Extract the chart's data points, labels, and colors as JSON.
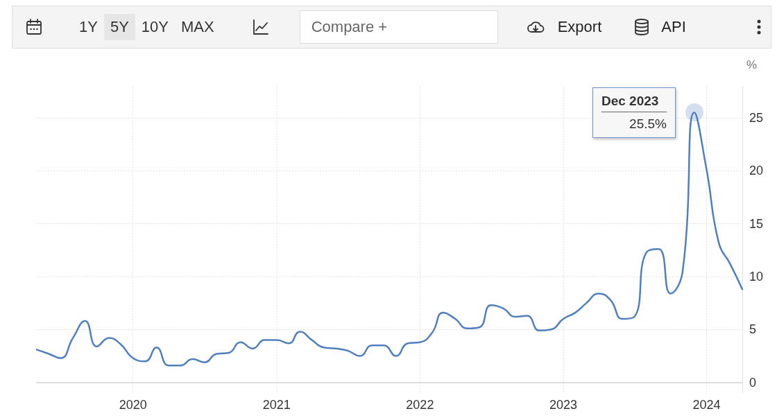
{
  "chart_data": {
    "type": "line",
    "ylabel": "%",
    "x": [
      "2019-05",
      "2019-06",
      "2019-07",
      "2019-08",
      "2019-09",
      "2019-10",
      "2019-11",
      "2019-12",
      "2020-01",
      "2020-02",
      "2020-03",
      "2020-04",
      "2020-05",
      "2020-06",
      "2020-07",
      "2020-08",
      "2020-09",
      "2020-10",
      "2020-11",
      "2020-12",
      "2021-01",
      "2021-02",
      "2021-03",
      "2021-04",
      "2021-05",
      "2021-06",
      "2021-07",
      "2021-08",
      "2021-09",
      "2021-10",
      "2021-11",
      "2021-12",
      "2022-01",
      "2022-02",
      "2022-03",
      "2022-04",
      "2022-05",
      "2022-06",
      "2022-07",
      "2022-08",
      "2022-09",
      "2022-10",
      "2022-11",
      "2022-12",
      "2023-01",
      "2023-02",
      "2023-03",
      "2023-04",
      "2023-05",
      "2023-06",
      "2023-07",
      "2023-08",
      "2023-09",
      "2023-10",
      "2023-11",
      "2023-12",
      "2024-01",
      "2024-02",
      "2024-03",
      "2024-04"
    ],
    "series": [
      {
        "color": "#4f7fbf",
        "values": [
          3.1,
          2.7,
          2.3,
          4.2,
          5.8,
          3.4,
          4.2,
          3.6,
          2.3,
          2.0,
          3.3,
          1.6,
          1.6,
          2.2,
          1.9,
          2.7,
          2.8,
          3.8,
          3.2,
          4.0,
          4.0,
          3.7,
          4.8,
          4.0,
          3.3,
          3.2,
          3.0,
          2.5,
          3.5,
          3.5,
          2.5,
          3.7,
          3.8,
          4.7,
          6.6,
          6.0,
          5.1,
          5.2,
          7.3,
          7.0,
          6.2,
          6.3,
          4.9,
          5.0,
          6.0,
          6.6,
          7.5,
          8.4,
          7.8,
          6.0,
          6.2,
          12.3,
          12.6,
          8.4,
          10.5,
          25.5,
          20.1,
          13.2,
          11.2,
          8.8
        ]
      }
    ],
    "xlim": [
      "2019-05",
      "2024-04"
    ],
    "xticks": [
      "2020",
      "2021",
      "2022",
      "2023",
      "2024"
    ],
    "ylim": [
      -1,
      28
    ],
    "yticks": [
      0,
      5,
      10,
      15,
      20,
      25
    ],
    "grid": true,
    "marker": "none",
    "line_style": "solid",
    "annotations": [
      "1Y",
      "5Y",
      "10Y",
      "MAX",
      "Compare +",
      "Export",
      "API",
      {
        "text": "Dec 2023\n25.5%",
        "x": "2023-12",
        "y": 25.5
      }
    ]
  }
}
